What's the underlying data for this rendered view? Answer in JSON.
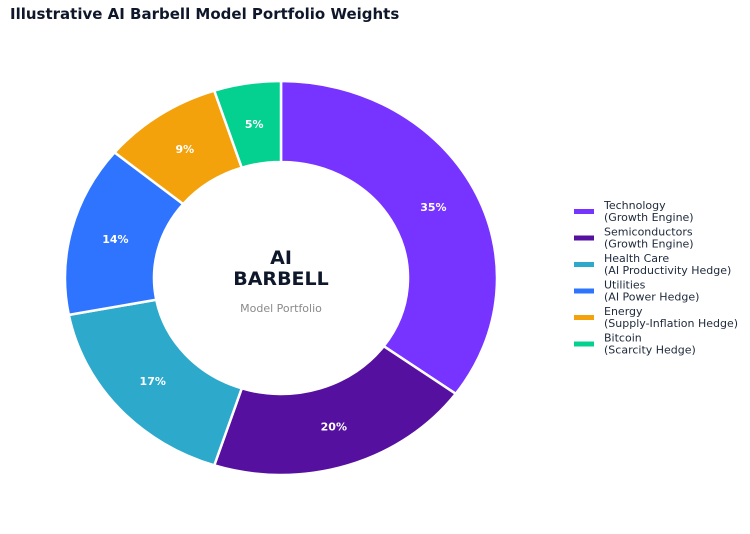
{
  "chart_data": {
    "type": "donut",
    "title": "Illustrative AI Barbell Model Portfolio Weights",
    "center_label": [
      "AI",
      "BARBELL"
    ],
    "center_sublabel": "Model Portfolio",
    "legend_position": "right",
    "slices": [
      {
        "name": "Technology",
        "sub": "(Growth Engine)",
        "value": 35,
        "label": "35%",
        "color": "#7733ff"
      },
      {
        "name": "Semiconductors",
        "sub": "(Growth Engine)",
        "value": 20,
        "label": "20%",
        "color": "#5510a0"
      },
      {
        "name": "Health Care",
        "sub": "(AI Productivity Hedge)",
        "value": 17,
        "label": "17%",
        "color": "#2da9cc"
      },
      {
        "name": "Utilities",
        "sub": "(AI Power Hedge)",
        "value": 14,
        "label": "14%",
        "color": "#2f74ff"
      },
      {
        "name": "Energy",
        "sub": "(Supply-Inflation Hedge)",
        "value": 9,
        "label": "9%",
        "color": "#f3a20c"
      },
      {
        "name": "Bitcoin",
        "sub": "(Scarcity Hedge)",
        "value": 5,
        "label": "5%",
        "color": "#04d08f"
      }
    ]
  }
}
